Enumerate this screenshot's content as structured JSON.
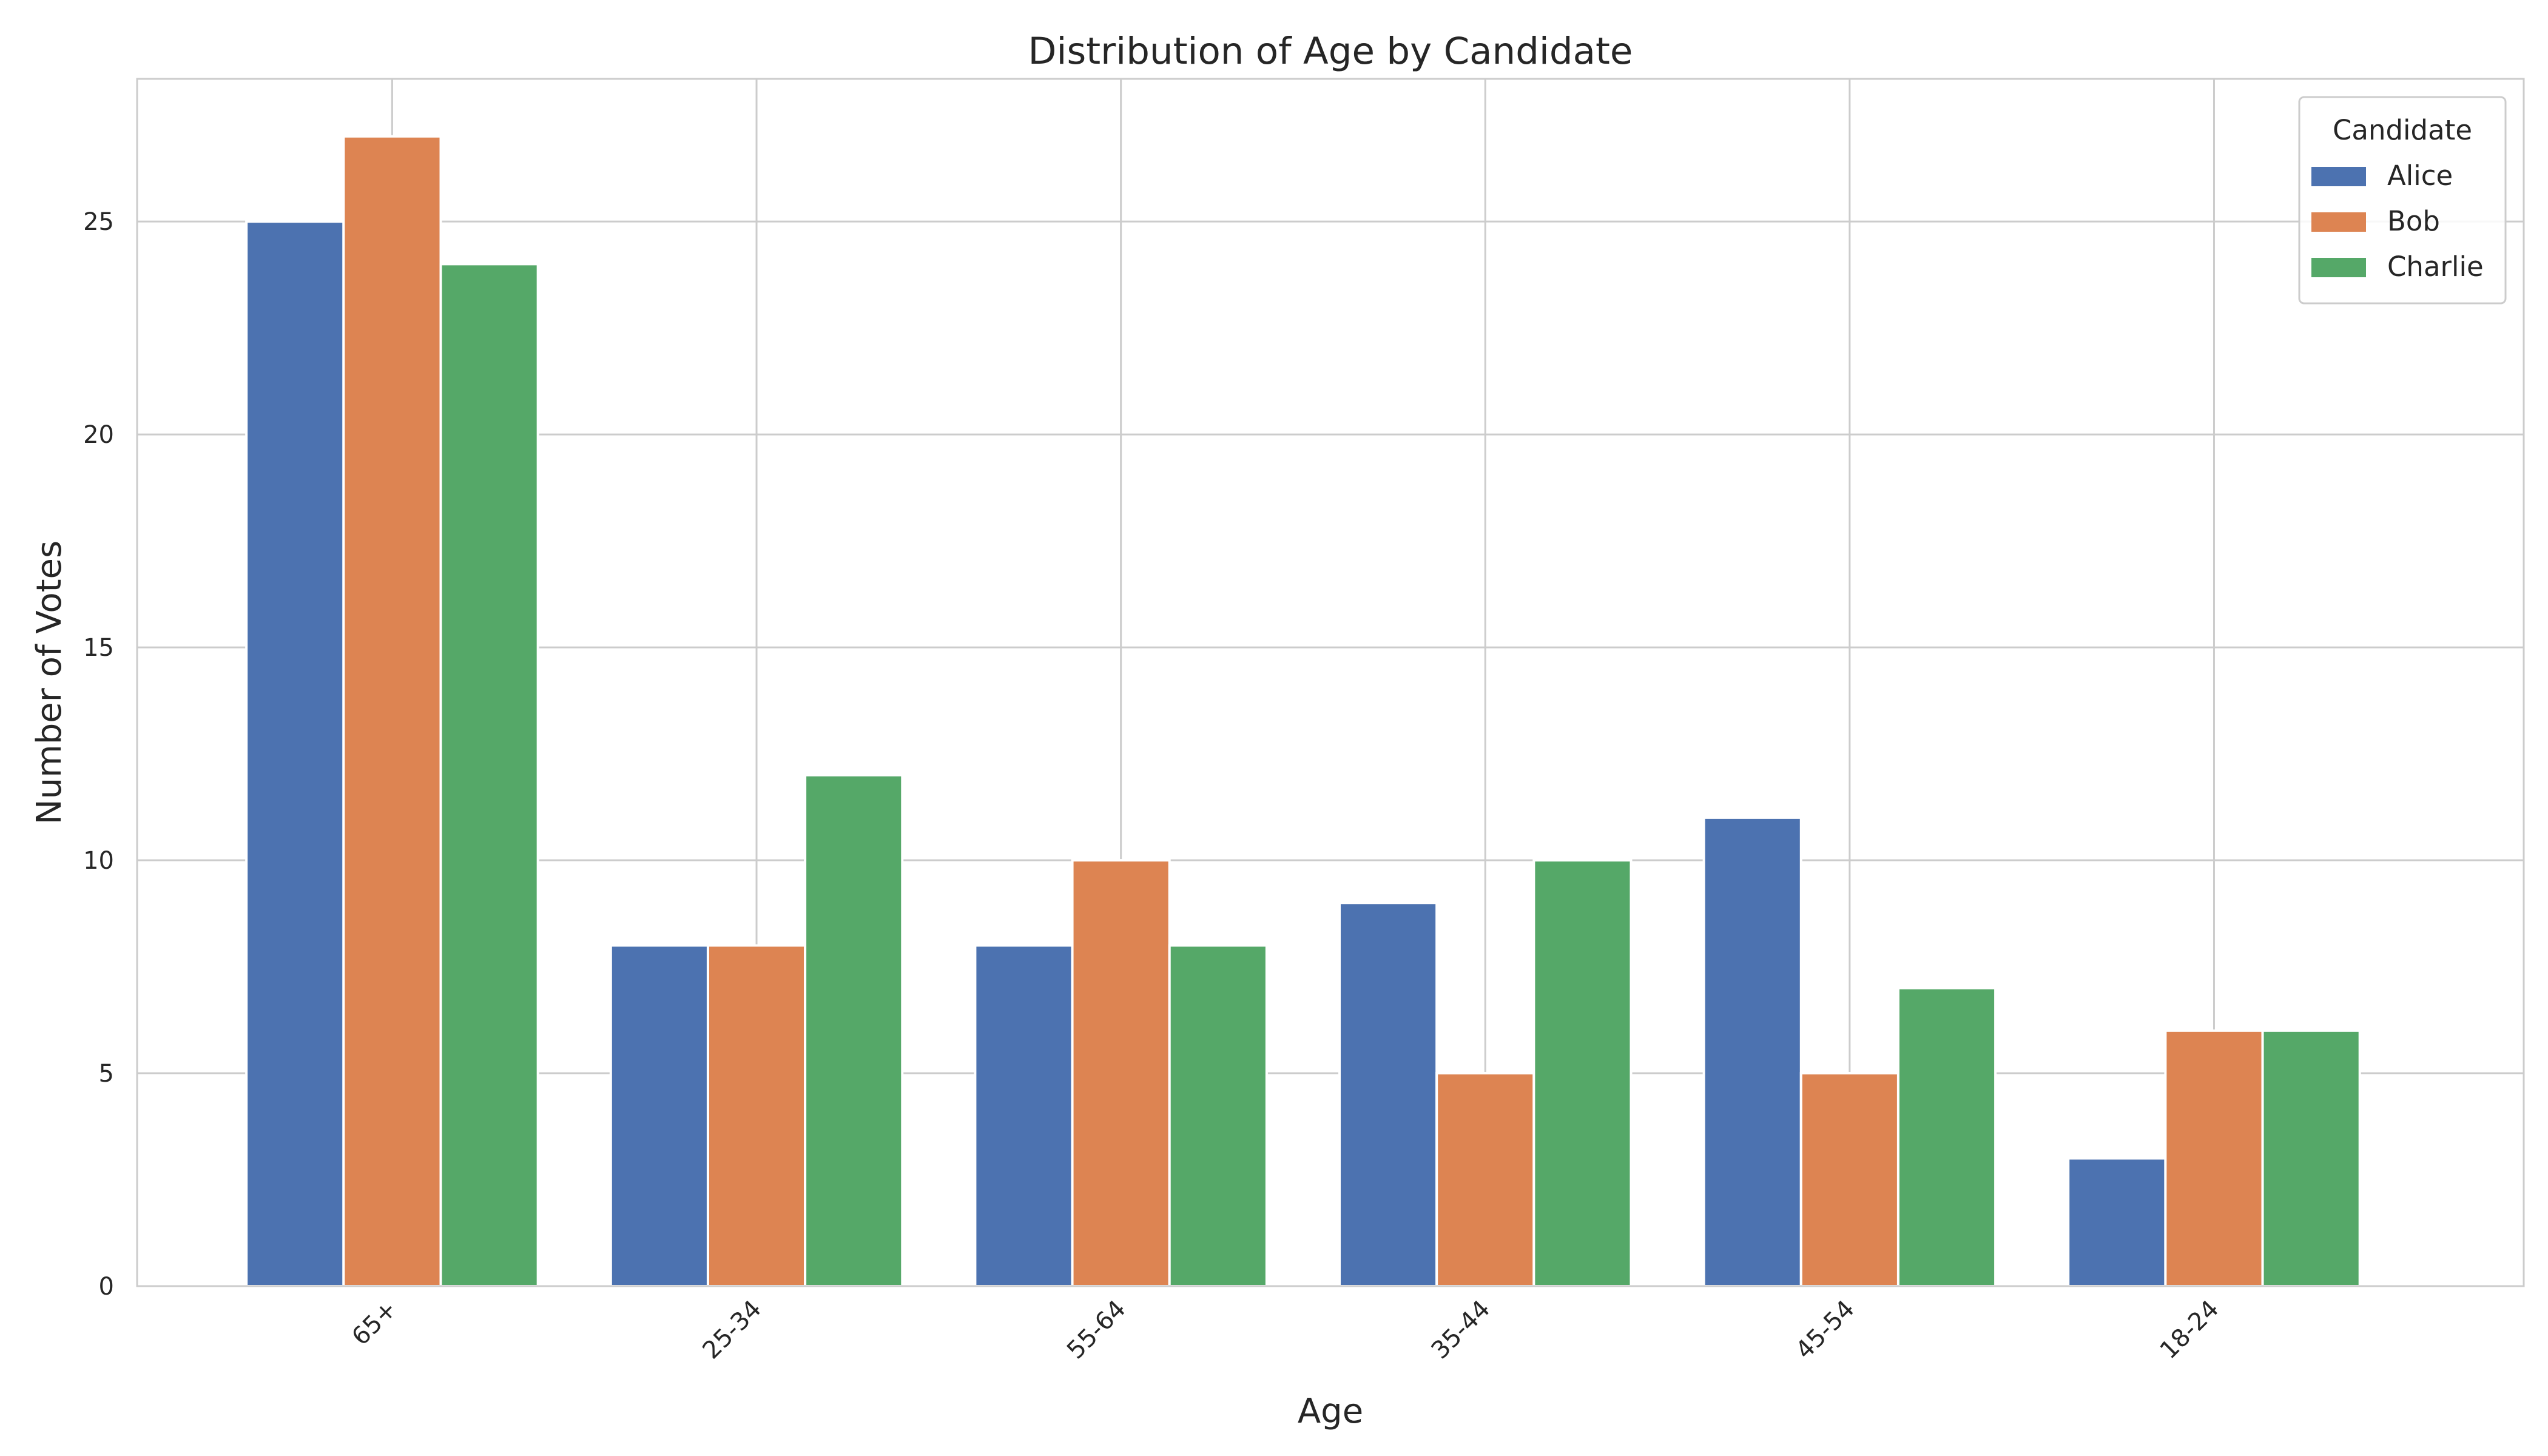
{
  "chart_data": {
    "type": "bar",
    "title": "Distribution of Age by Candidate",
    "xlabel": "Age",
    "ylabel": "Number of Votes",
    "categories": [
      "65+",
      "25-34",
      "55-64",
      "35-44",
      "45-54",
      "18-24"
    ],
    "series": [
      {
        "name": "Alice",
        "color": "#4c72b0",
        "values": [
          25,
          8,
          8,
          9,
          11,
          3
        ]
      },
      {
        "name": "Bob",
        "color": "#dd8452",
        "values": [
          27,
          8,
          10,
          5,
          5,
          6
        ]
      },
      {
        "name": "Charlie",
        "color": "#55a868",
        "values": [
          24,
          12,
          8,
          10,
          7,
          6
        ]
      }
    ],
    "ylim": [
      0,
      28.35
    ],
    "yticks": [
      0,
      5,
      10,
      15,
      20,
      25
    ],
    "grid": true,
    "legend": {
      "title": "Candidate",
      "placement": "top-right"
    }
  }
}
